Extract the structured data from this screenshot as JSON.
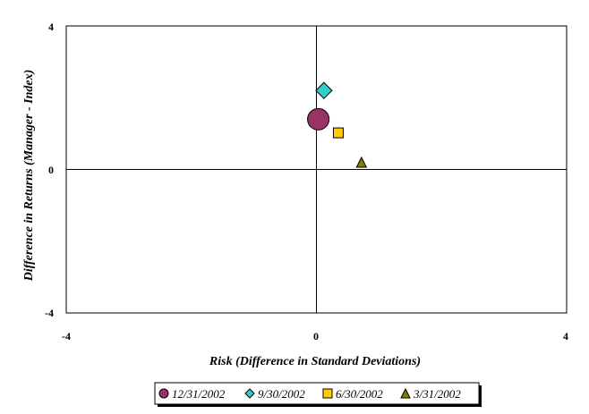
{
  "chart_data": {
    "type": "scatter",
    "title": "",
    "xlabel": "Risk (Difference in Standard Deviations)",
    "ylabel": "Difference in Returns (Manager - Index)",
    "xlim": [
      -4,
      4
    ],
    "ylim": [
      -4,
      4
    ],
    "xticks": [
      "-4",
      "0",
      "4"
    ],
    "yticks": [
      "4",
      "0",
      "-4"
    ],
    "grid": false,
    "legend_position": "bottom",
    "series": [
      {
        "name": "12/31/2002",
        "marker": "circle",
        "color": "#993366",
        "x": 0.03,
        "y": 1.4
      },
      {
        "name": "9/30/2002",
        "marker": "diamond",
        "color": "#33CCCC",
        "x": 0.12,
        "y": 2.2
      },
      {
        "name": "6/30/2002",
        "marker": "square",
        "color": "#FFCC00",
        "x": 0.35,
        "y": 1.02
      },
      {
        "name": "3/31/2002",
        "marker": "triangle",
        "color": "#808000",
        "x": 0.72,
        "y": 0.2
      }
    ]
  }
}
